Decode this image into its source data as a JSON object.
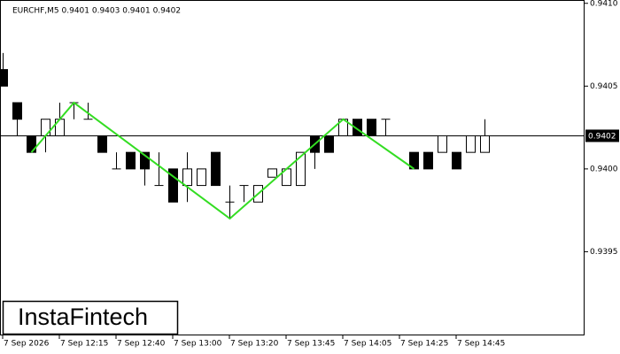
{
  "chart_data": {
    "type": "candlestick",
    "symbol_info": "EURCHF,M5  0.9401 0.9403 0.9401 0.9402",
    "brand": "InstaFintech",
    "categories": [
      "7 Sep 2026",
      null,
      null,
      null,
      "7 Sep 12:15",
      null,
      null,
      null,
      "7 Sep 12:40",
      null,
      null,
      null,
      "7 Sep 13:00",
      null,
      null,
      null,
      "7 Sep 13:20",
      null,
      null,
      null,
      "7 Sep 13:45",
      null,
      null,
      null,
      "7 Sep 14:05",
      null,
      null,
      null,
      "7 Sep 14:25",
      null,
      null,
      null,
      "7 Sep 14:45",
      null,
      null
    ],
    "open": [
      0.9406,
      0.9404,
      0.9402,
      0.9402,
      0.9402,
      0.9404,
      0.9403,
      0.9402,
      0.94,
      0.9401,
      0.9401,
      0.9399,
      0.94,
      0.9399,
      0.9399,
      0.9401,
      0.9398,
      0.9399,
      0.9398,
      0.93995,
      0.9399,
      0.9399,
      0.9402,
      0.9402,
      0.9402,
      0.9403,
      0.9403,
      0.9403,
      null,
      0.9401,
      0.9401,
      0.9401,
      0.9401,
      0.9401,
      0.9401
    ],
    "high": [
      0.9407,
      0.9404,
      0.9402,
      0.9403,
      0.9404,
      0.9404,
      0.9404,
      0.9402,
      0.9401,
      0.9401,
      0.9401,
      0.9401,
      0.94,
      0.9401,
      0.94,
      0.9401,
      0.9399,
      0.9399,
      0.9399,
      0.94,
      0.94,
      0.9401,
      0.9402,
      0.9402,
      0.9403,
      0.9403,
      0.9403,
      0.9403,
      null,
      0.9401,
      0.9401,
      0.9402,
      0.9401,
      0.9402,
      0.9403
    ],
    "low": [
      0.9405,
      0.9402,
      0.9401,
      0.9401,
      0.9402,
      0.9403,
      0.9403,
      0.9401,
      0.94,
      0.94,
      0.9399,
      0.9399,
      0.9398,
      0.9398,
      0.9399,
      0.9399,
      0.9397,
      0.9398,
      0.9398,
      0.93995,
      0.9399,
      0.9399,
      0.94,
      0.9401,
      0.9402,
      0.9402,
      0.9402,
      0.9402,
      null,
      0.94,
      0.94,
      0.9401,
      0.94,
      0.9401,
      0.9401
    ],
    "close": [
      0.9405,
      0.9403,
      0.9401,
      0.9403,
      0.9403,
      0.9404,
      0.9403,
      0.9401,
      0.94,
      0.94,
      0.94,
      0.9399,
      0.9398,
      0.94,
      0.94,
      0.9399,
      0.9398,
      0.9399,
      0.9399,
      0.94,
      0.94,
      0.9401,
      0.9401,
      0.9401,
      0.9403,
      0.9402,
      0.9402,
      0.9403,
      null,
      0.94,
      0.94,
      0.9402,
      0.94,
      0.9402,
      0.9402
    ],
    "pattern": {
      "color": "#33dd22",
      "x": [
        2,
        5,
        16,
        24,
        29
      ],
      "values": [
        0.9401,
        0.9404,
        0.9397,
        0.9403,
        0.94
      ]
    },
    "last_price": 0.9402,
    "ylim": [
      0.939,
      0.94102
    ],
    "yticks": [
      0.9395,
      {
        "value": 0.94,
        "label": "0.9400"
      },
      0.9405,
      {
        "value": 0.941,
        "label": "0.9410"
      }
    ]
  }
}
